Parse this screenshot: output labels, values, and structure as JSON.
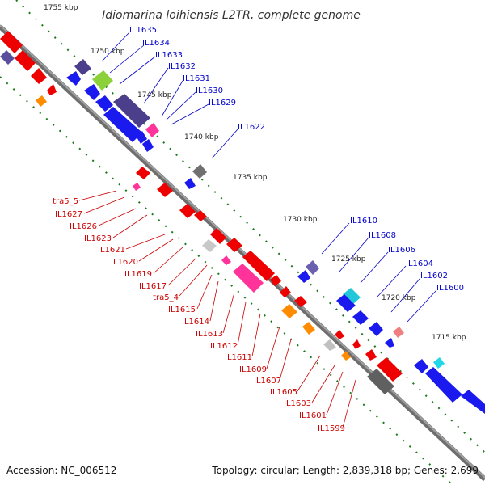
{
  "title": "Idiomarina loihiensis L2TR, complete genome",
  "footer": {
    "accession": "Accession: NC_006512",
    "summary": "Topology: circular; Length: 2,839,318 bp; Genes: 2,699"
  },
  "colors": {
    "backbone": "#808080",
    "ticks": "#1a7a1a",
    "label_blue": "#0000cc",
    "label_red": "#cc0000"
  },
  "kbp_labels": [
    "1755 kbp",
    "1750 kbp",
    "1745 kbp",
    "1740 kbp",
    "1735 kbp",
    "1730 kbp",
    "1725 kbp",
    "1720 kbp",
    "1715 kbp"
  ],
  "blue_labels": [
    "IL1635",
    "IL1634",
    "IL1633",
    "IL1632",
    "IL1631",
    "IL1630",
    "IL1629",
    "IL1622",
    "IL1610",
    "IL1608",
    "IL1606",
    "IL1604",
    "IL1602",
    "IL1600"
  ],
  "red_labels": [
    "tra5_5",
    "IL1627",
    "IL1626",
    "IL1623",
    "IL1621",
    "IL1620",
    "IL1619",
    "IL1617",
    "tra5_4",
    "IL1615",
    "IL1614",
    "IL1613",
    "IL1612",
    "IL1611",
    "IL1609",
    "IL1607",
    "IL1605",
    "IL1603",
    "IL1601",
    "IL1599"
  ]
}
